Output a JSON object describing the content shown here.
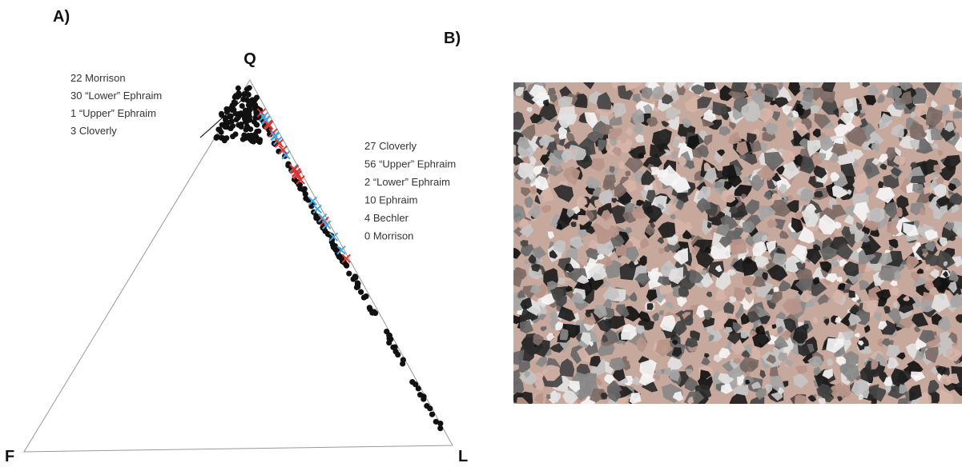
{
  "panel_a": {
    "label": "A)",
    "vertices": {
      "top": "Q",
      "left": "F",
      "right": "L"
    },
    "group_left": [
      "22 Morrison",
      "30 “Lower” Ephraim",
      "1 “Upper” Ephraim",
      "3 Cloverly"
    ],
    "group_right": [
      "27 Cloverly",
      "56 “Upper” Ephraim",
      "2 “Lower” Ephraim",
      "10 Ephraim",
      "4 Bechler",
      "0 Morrison"
    ]
  },
  "panel_b": {
    "label": "B)"
  }
}
